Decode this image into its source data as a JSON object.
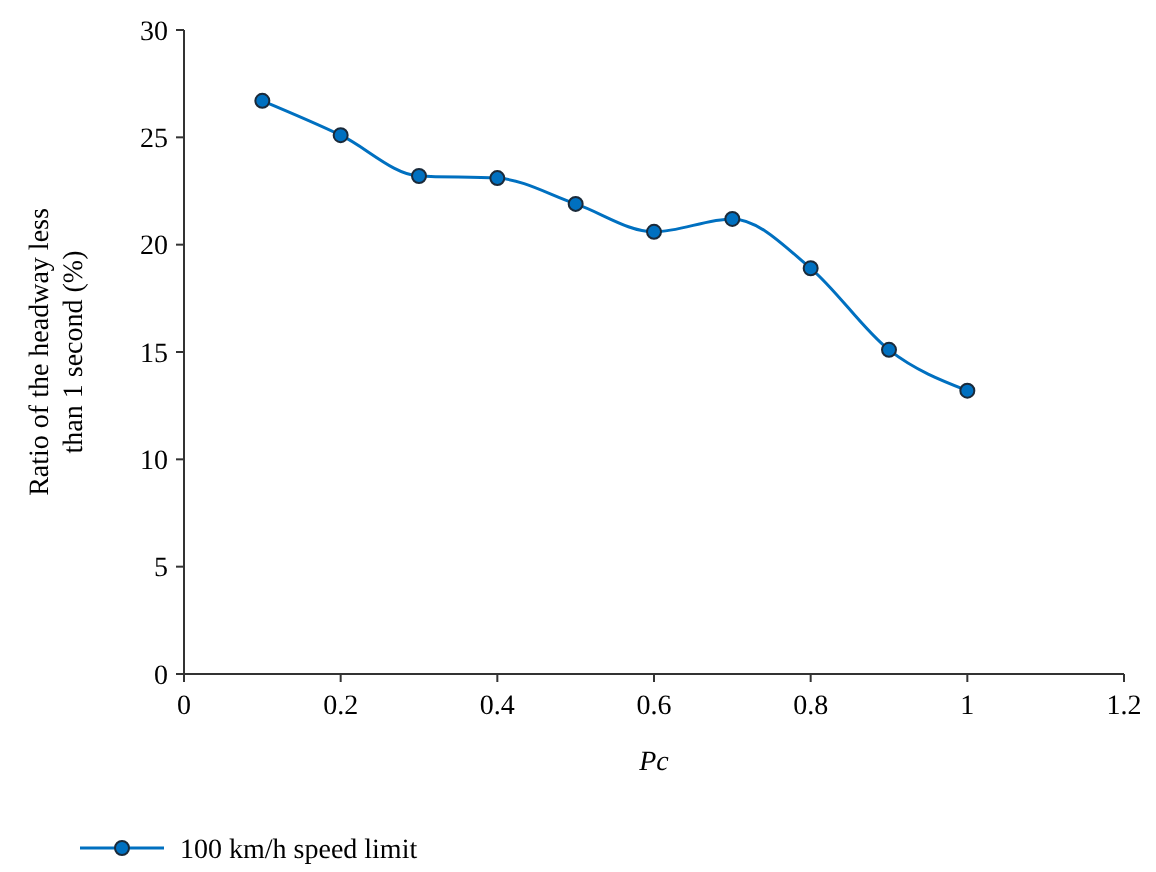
{
  "chart_data": {
    "type": "line",
    "xlabel": "Pc",
    "ylabel": "Ratio of the headway less than 1 second (%)",
    "x": [
      0.1,
      0.2,
      0.3,
      0.4,
      0.5,
      0.6,
      0.7,
      0.8,
      0.9,
      1
    ],
    "series": [
      {
        "name": "100 km/h speed limit",
        "color": "#0070c0",
        "values": [
          26.7,
          25.1,
          23.2,
          23.1,
          21.9,
          20.6,
          21.2,
          18.9,
          15.1,
          13.2
        ]
      }
    ],
    "xlim": [
      0,
      1.2
    ],
    "xticks": [
      0,
      0.2,
      0.4,
      0.6,
      0.8,
      1,
      1.2
    ],
    "ylim": [
      0,
      30
    ],
    "yticks": [
      0,
      5,
      10,
      15,
      20,
      25,
      30
    ],
    "marker": "circle",
    "legend": "bottom",
    "grid": false
  }
}
